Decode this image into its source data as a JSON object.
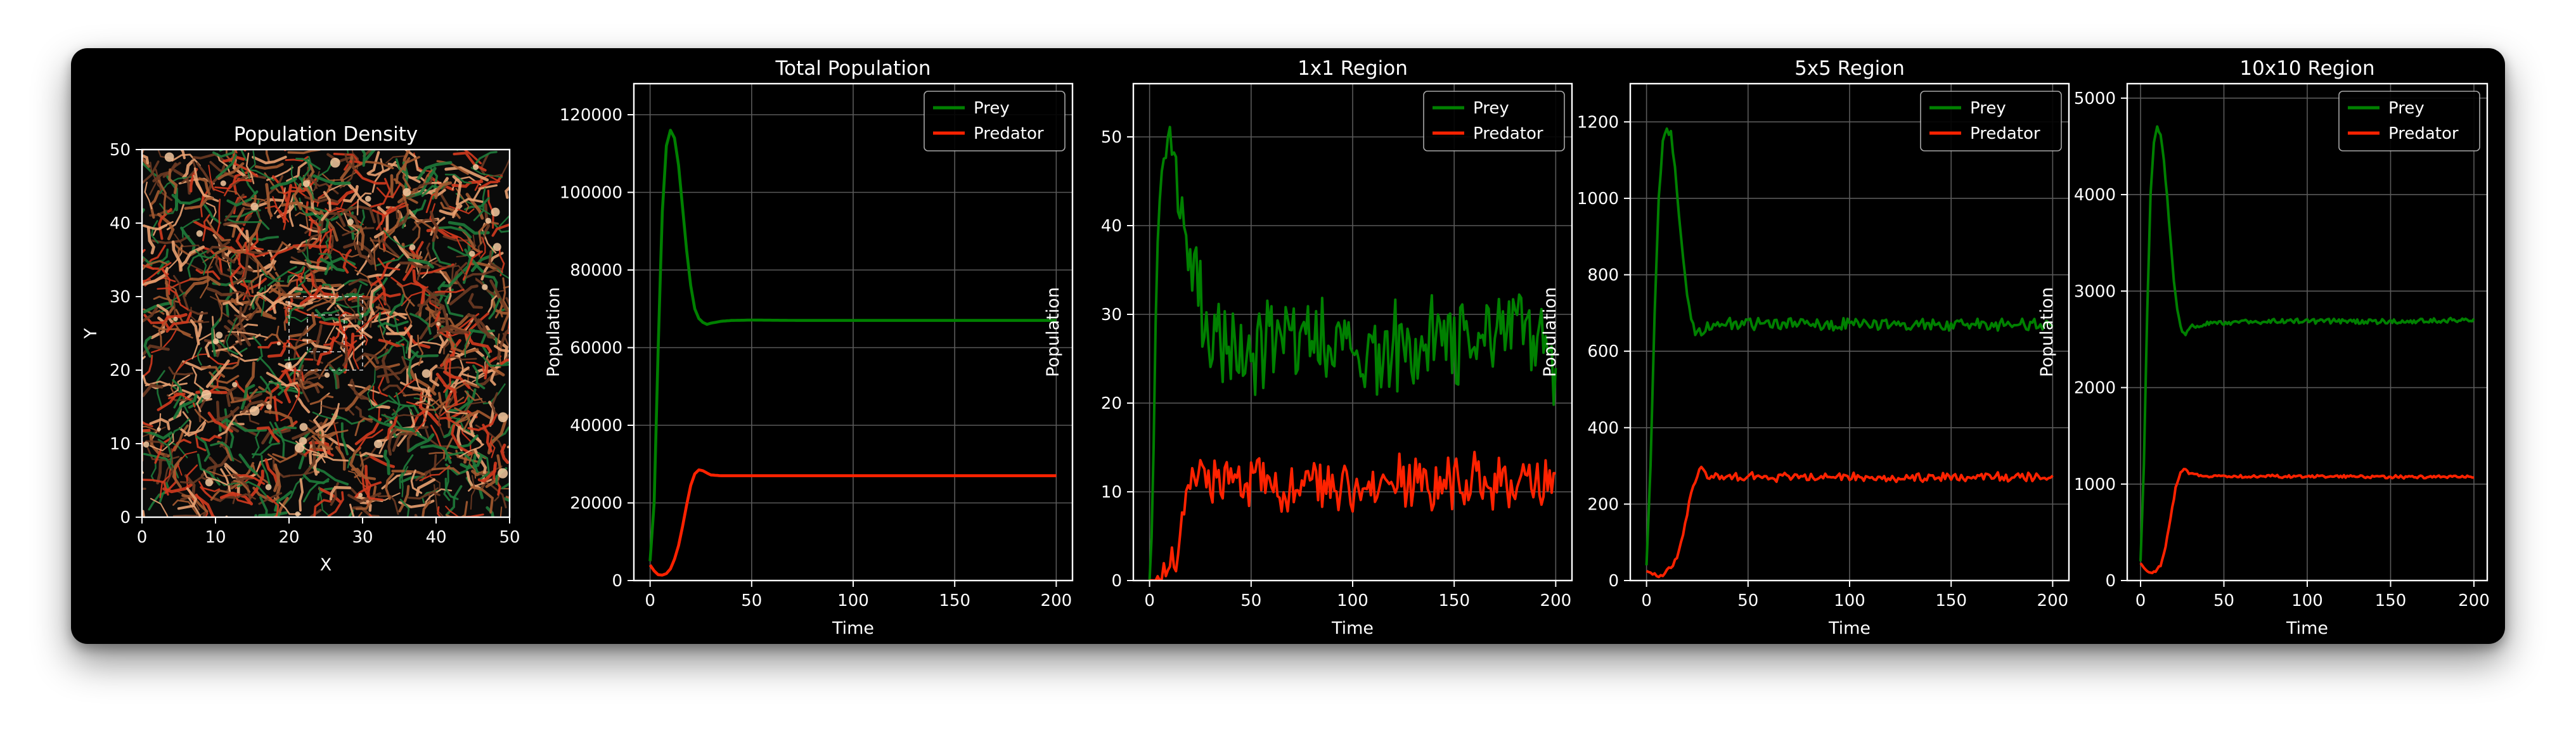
{
  "chart_data": [
    {
      "type": "heatmap",
      "title": "Population Density",
      "xlabel": "X",
      "ylabel": "Y",
      "xlim": [
        0,
        50
      ],
      "ylim": [
        0,
        50
      ],
      "xticks": [
        0,
        10,
        20,
        30,
        40,
        50
      ],
      "yticks": [
        0,
        10,
        20,
        30,
        40,
        50
      ],
      "colors": {
        "prey": "#1e7a3a",
        "predator": "#d23a1e",
        "mixed": "#e8a070"
      }
    },
    {
      "type": "line",
      "title": "Total Population",
      "xlabel": "Time",
      "ylabel": "Population",
      "xlim": [
        -8,
        208
      ],
      "ylim": [
        0,
        128000
      ],
      "xticks": [
        0,
        50,
        100,
        150,
        200
      ],
      "yticks": [
        0,
        20000,
        40000,
        60000,
        80000,
        100000,
        120000
      ],
      "legend": "top-right",
      "grid": true,
      "series": [
        {
          "name": "Prey",
          "color": "#008000",
          "points": [
            [
              0,
              5000
            ],
            [
              2,
              20000
            ],
            [
              4,
              60000
            ],
            [
              6,
              95000
            ],
            [
              8,
              112000
            ],
            [
              10,
              116000
            ],
            [
              12,
              114000
            ],
            [
              14,
              107000
            ],
            [
              16,
              96000
            ],
            [
              18,
              85000
            ],
            [
              20,
              76000
            ],
            [
              22,
              70000
            ],
            [
              24,
              67500
            ],
            [
              26,
              66500
            ],
            [
              28,
              66000
            ],
            [
              30,
              66300
            ],
            [
              35,
              66800
            ],
            [
              40,
              67000
            ],
            [
              50,
              67100
            ],
            [
              75,
              67000
            ],
            [
              100,
              67000
            ],
            [
              125,
              67000
            ],
            [
              150,
              67000
            ],
            [
              175,
              67000
            ],
            [
              200,
              67000
            ]
          ]
        },
        {
          "name": "Predator",
          "color": "#ff2200",
          "points": [
            [
              0,
              4000
            ],
            [
              2,
              2500
            ],
            [
              4,
              1500
            ],
            [
              6,
              1400
            ],
            [
              8,
              1800
            ],
            [
              10,
              3000
            ],
            [
              12,
              5500
            ],
            [
              14,
              9000
            ],
            [
              16,
              14000
            ],
            [
              18,
              19500
            ],
            [
              20,
              24500
            ],
            [
              22,
              27500
            ],
            [
              24,
              28500
            ],
            [
              26,
              28300
            ],
            [
              28,
              27700
            ],
            [
              30,
              27200
            ],
            [
              35,
              27000
            ],
            [
              50,
              27000
            ],
            [
              100,
              27000
            ],
            [
              150,
              27000
            ],
            [
              200,
              27000
            ]
          ]
        }
      ]
    },
    {
      "type": "line",
      "title": "1x1 Region",
      "xlabel": "Time",
      "ylabel": "Population",
      "xlim": [
        -8,
        208
      ],
      "ylim": [
        0,
        56
      ],
      "xticks": [
        0,
        50,
        100,
        150,
        200
      ],
      "yticks": [
        0,
        10,
        20,
        30,
        40,
        50
      ],
      "legend": "top-right",
      "grid": true,
      "noisy": true,
      "series": [
        {
          "name": "Prey",
          "color": "#008000",
          "points": [
            [
              0,
              0
            ],
            [
              1,
              5
            ],
            [
              2,
              15
            ],
            [
              3,
              28
            ],
            [
              4,
              38
            ],
            [
              6,
              45
            ],
            [
              8,
              48
            ],
            [
              10,
              51
            ],
            [
              12,
              49
            ],
            [
              14,
              45
            ],
            [
              16,
              40
            ],
            [
              18,
              37
            ],
            [
              20,
              36
            ],
            [
              22,
              35
            ],
            [
              24,
              33
            ],
            [
              26,
              30
            ],
            [
              30,
              28
            ],
            [
              40,
              27
            ],
            [
              60,
              26
            ],
            [
              80,
              27
            ],
            [
              100,
              27
            ],
            [
              120,
              26
            ],
            [
              140,
              27
            ],
            [
              160,
              27
            ],
            [
              180,
              27
            ],
            [
              200,
              26
            ]
          ],
          "noise": 4.2
        },
        {
          "name": "Predator",
          "color": "#ff2200",
          "points": [
            [
              0,
              0
            ],
            [
              3,
              0
            ],
            [
              6,
              0.5
            ],
            [
              10,
              1
            ],
            [
              12,
              2
            ],
            [
              14,
              4
            ],
            [
              16,
              7
            ],
            [
              18,
              10
            ],
            [
              20,
              12
            ],
            [
              25,
              12
            ],
            [
              30,
              11
            ],
            [
              50,
              11
            ],
            [
              100,
              11
            ],
            [
              150,
              11
            ],
            [
              200,
              11
            ]
          ],
          "noise": 2.4
        }
      ]
    },
    {
      "type": "line",
      "title": "5x5 Region",
      "xlabel": "Time",
      "ylabel": "Population",
      "xlim": [
        -8,
        208
      ],
      "ylim": [
        0,
        1300
      ],
      "xticks": [
        0,
        50,
        100,
        150,
        200
      ],
      "yticks": [
        0,
        200,
        400,
        600,
        800,
        1000,
        1200
      ],
      "legend": "top-right",
      "grid": true,
      "noisy": true,
      "series": [
        {
          "name": "Prey",
          "color": "#008000",
          "points": [
            [
              0,
              40
            ],
            [
              2,
              300
            ],
            [
              4,
              700
            ],
            [
              6,
              1000
            ],
            [
              8,
              1150
            ],
            [
              10,
              1185
            ],
            [
              12,
              1160
            ],
            [
              14,
              1080
            ],
            [
              16,
              960
            ],
            [
              18,
              840
            ],
            [
              20,
              750
            ],
            [
              22,
              690
            ],
            [
              24,
              660
            ],
            [
              26,
              650
            ],
            [
              28,
              655
            ],
            [
              30,
              665
            ],
            [
              40,
              672
            ],
            [
              60,
              670
            ],
            [
              100,
              670
            ],
            [
              150,
              670
            ],
            [
              200,
              670
            ]
          ],
          "noise": 13
        },
        {
          "name": "Predator",
          "color": "#ff2200",
          "points": [
            [
              0,
              25
            ],
            [
              3,
              18
            ],
            [
              6,
              15
            ],
            [
              9,
              18
            ],
            [
              12,
              30
            ],
            [
              15,
              60
            ],
            [
              18,
              120
            ],
            [
              21,
              200
            ],
            [
              24,
              265
            ],
            [
              26,
              290
            ],
            [
              28,
              285
            ],
            [
              30,
              275
            ],
            [
              40,
              272
            ],
            [
              60,
              270
            ],
            [
              100,
              270
            ],
            [
              150,
              270
            ],
            [
              200,
              270
            ]
          ],
          "noise": 9
        }
      ]
    },
    {
      "type": "line",
      "title": "10x10 Region",
      "xlabel": "Time",
      "ylabel": "Population",
      "xlim": [
        -8,
        208
      ],
      "ylim": [
        0,
        5150
      ],
      "xticks": [
        0,
        50,
        100,
        150,
        200
      ],
      "yticks": [
        0,
        1000,
        2000,
        3000,
        4000,
        5000
      ],
      "legend": "top-right",
      "grid": true,
      "noisy": true,
      "series": [
        {
          "name": "Prey",
          "color": "#008000",
          "points": [
            [
              0,
              200
            ],
            [
              2,
              1200
            ],
            [
              4,
              2800
            ],
            [
              6,
              4000
            ],
            [
              8,
              4550
            ],
            [
              10,
              4700
            ],
            [
              12,
              4620
            ],
            [
              14,
              4350
            ],
            [
              16,
              3950
            ],
            [
              18,
              3500
            ],
            [
              20,
              3100
            ],
            [
              22,
              2800
            ],
            [
              24,
              2620
            ],
            [
              26,
              2560
            ],
            [
              28,
              2580
            ],
            [
              30,
              2620
            ],
            [
              40,
              2660
            ],
            [
              60,
              2680
            ],
            [
              100,
              2690
            ],
            [
              150,
              2680
            ],
            [
              200,
              2700
            ]
          ],
          "noise": 22
        },
        {
          "name": "Predator",
          "color": "#ff2200",
          "points": [
            [
              0,
              180
            ],
            [
              3,
              110
            ],
            [
              6,
              80
            ],
            [
              9,
              90
            ],
            [
              12,
              160
            ],
            [
              15,
              350
            ],
            [
              18,
              650
            ],
            [
              21,
              950
            ],
            [
              24,
              1130
            ],
            [
              26,
              1160
            ],
            [
              28,
              1130
            ],
            [
              30,
              1100
            ],
            [
              40,
              1085
            ],
            [
              60,
              1080
            ],
            [
              100,
              1080
            ],
            [
              150,
              1075
            ],
            [
              200,
              1075
            ]
          ],
          "noise": 12
        }
      ]
    }
  ]
}
